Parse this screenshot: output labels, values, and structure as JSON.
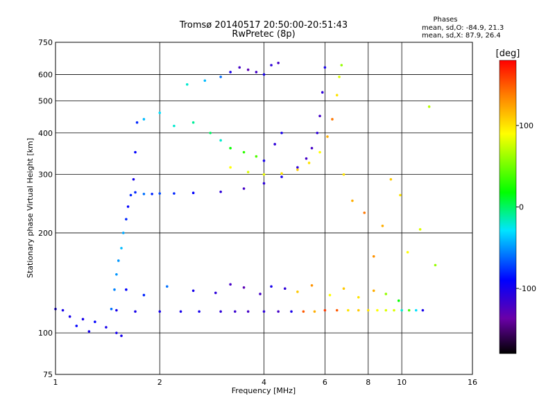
{
  "chart_data": {
    "type": "scatter",
    "title": "Tromsø 20140517 20:50:00-20:51:43",
    "subtitle": "RwPretec (8p)",
    "stats": {
      "heading": "Phases",
      "line_o": "mean, sd,O: -84.9, 21.3",
      "line_x": "mean, sd,X:  87.9, 26.4"
    },
    "xlabel": "Frequency [MHz]",
    "ylabel": "Stationary phase Virtual Height [km]",
    "x_scale": "log",
    "y_scale": "log",
    "xlim": [
      1,
      16
    ],
    "ylim": [
      75,
      750
    ],
    "x_ticks": [
      1,
      2,
      4,
      6,
      8,
      10,
      16
    ],
    "x_tick_labels": [
      "1",
      "2",
      "4",
      "6",
      "8",
      "10",
      "16"
    ],
    "y_ticks": [
      75,
      100,
      200,
      300,
      400,
      500,
      600,
      750
    ],
    "y_tick_labels": [
      "75",
      "100",
      "200",
      "300",
      "400",
      "500",
      "600",
      "750"
    ],
    "grid": true,
    "colorbar": {
      "label": "[deg]",
      "range": [
        -180,
        180
      ],
      "ticks": [
        -100,
        0,
        100
      ],
      "tick_labels": [
        "-100",
        "0",
        "100"
      ]
    },
    "series": [
      {
        "trace": "o_mode_bottom_1_2_MHz",
        "x": [
          1.0,
          1.05,
          1.1,
          1.15,
          1.2,
          1.25,
          1.3,
          1.4,
          1.5,
          1.55
        ],
        "y": [
          118,
          117,
          112,
          105,
          110,
          101,
          108,
          104,
          100,
          98
        ],
        "phase": [
          -100,
          -100,
          -100,
          -90,
          -100,
          -100,
          -90,
          -100,
          -100,
          -100
        ]
      },
      {
        "trace": "e_layer_flat_116km",
        "x": [
          1.5,
          1.7,
          2.0,
          2.3,
          2.6,
          3.0,
          3.3,
          3.6,
          4.0,
          4.4,
          4.8,
          5.2,
          5.6,
          6.0,
          6.5,
          7.0,
          7.5,
          8.0,
          8.5,
          9.0,
          9.5,
          10.0,
          10.5,
          11.0,
          11.5
        ],
        "y": [
          117,
          116,
          116,
          116,
          116,
          116,
          116,
          116,
          116,
          116,
          116,
          116,
          116,
          117,
          117,
          117,
          117,
          117,
          117,
          117,
          117,
          117,
          117,
          117,
          117
        ],
        "phase": [
          -100,
          -100,
          -100,
          -100,
          -100,
          -110,
          -115,
          -120,
          -110,
          -120,
          -100,
          150,
          120,
          160,
          150,
          100,
          110,
          100,
          90,
          80,
          80,
          -20,
          40,
          -30,
          -100
        ]
      },
      {
        "trace": "e_layer_scatter_130_140km",
        "x": [
          1.6,
          1.8,
          2.1,
          2.5,
          2.9,
          3.2,
          3.5,
          3.9,
          4.2,
          4.6,
          5.0,
          5.5,
          6.2,
          6.8,
          7.5,
          8.3,
          9.0,
          9.8
        ],
        "y": [
          135,
          130,
          138,
          134,
          132,
          140,
          137,
          131,
          138,
          136,
          133,
          139,
          130,
          136,
          128,
          134,
          131,
          125
        ],
        "phase": [
          -90,
          -80,
          -60,
          -100,
          -110,
          -120,
          -130,
          -120,
          -100,
          -110,
          110,
          130,
          90,
          110,
          100,
          120,
          60,
          20
        ]
      },
      {
        "trace": "f_layer_vertical_riser",
        "x": [
          1.45,
          1.48,
          1.5,
          1.52,
          1.55,
          1.57,
          1.6,
          1.62,
          1.65,
          1.68,
          1.7,
          1.72
        ],
        "y": [
          118,
          135,
          150,
          165,
          180,
          200,
          220,
          240,
          260,
          290,
          350,
          430
        ],
        "phase": [
          -60,
          -55,
          -50,
          -50,
          -40,
          -45,
          -80,
          -90,
          -80,
          -100,
          -90,
          -80
        ]
      },
      {
        "trace": "o_mode_f_trace",
        "x": [
          1.7,
          1.8,
          1.9,
          2.0,
          2.2,
          2.5,
          3.0,
          3.5,
          4.0,
          4.5,
          5.0,
          5.3,
          5.5,
          5.7,
          5.8,
          5.9,
          6.0
        ],
        "y": [
          265,
          262,
          262,
          263,
          263,
          264,
          266,
          272,
          282,
          295,
          315,
          335,
          360,
          400,
          450,
          530,
          630
        ],
        "phase": [
          -80,
          -60,
          -80,
          -70,
          -80,
          -90,
          -110,
          -120,
          -110,
          -100,
          -110,
          -120,
          -120,
          -110,
          -120,
          -110,
          -100
        ]
      },
      {
        "trace": "x_mode_f_trace",
        "x": [
          3.2,
          3.6,
          4.0,
          4.5,
          5.0,
          5.4,
          5.8,
          6.1,
          6.3,
          6.5,
          6.6,
          6.7
        ],
        "y": [
          315,
          305,
          300,
          302,
          310,
          325,
          350,
          390,
          440,
          520,
          590,
          640
        ],
        "phase": [
          90,
          80,
          85,
          100,
          110,
          100,
          90,
          120,
          140,
          100,
          80,
          60
        ]
      },
      {
        "trace": "f_layer_upper_scatter",
        "x": [
          1.8,
          2.0,
          2.2,
          2.5,
          2.8,
          3.0,
          3.2,
          3.5,
          3.8,
          4.0,
          4.3,
          4.5
        ],
        "y": [
          440,
          460,
          420,
          430,
          400,
          380,
          360,
          350,
          340,
          330,
          370,
          400
        ],
        "phase": [
          -40,
          -30,
          -20,
          -10,
          0,
          -20,
          20,
          30,
          40,
          -100,
          -110,
          -100
        ]
      },
      {
        "trace": "f_layer_top_cluster",
        "x": [
          2.4,
          2.7,
          3.0,
          3.2,
          3.4,
          3.6,
          3.8,
          4.0,
          4.2,
          4.4
        ],
        "y": [
          560,
          575,
          590,
          610,
          630,
          620,
          610,
          600,
          640,
          650
        ],
        "phase": [
          -20,
          -40,
          -60,
          -100,
          -120,
          -130,
          -120,
          -100,
          -110,
          -120
        ]
      },
      {
        "trace": "sporadic_high_frequency",
        "x": [
          6.8,
          7.2,
          7.8,
          8.3,
          8.8,
          9.3,
          9.9,
          10.4,
          11.3,
          12.0,
          12.5
        ],
        "y": [
          300,
          250,
          230,
          170,
          210,
          290,
          260,
          175,
          205,
          480,
          160
        ],
        "phase": [
          100,
          120,
          140,
          130,
          120,
          110,
          100,
          90,
          80,
          70,
          60
        ]
      }
    ]
  }
}
